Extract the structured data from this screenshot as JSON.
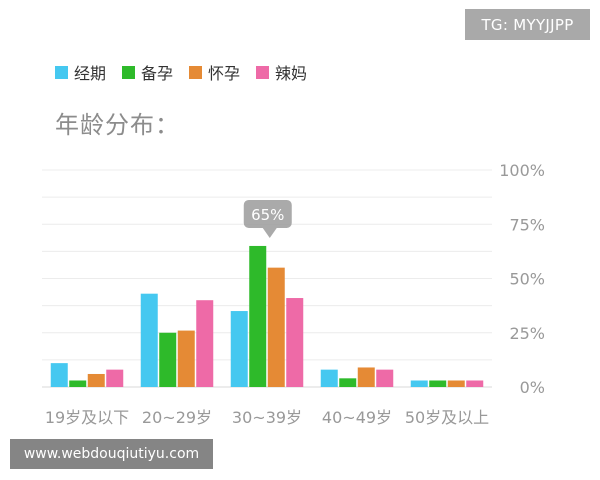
{
  "badge": {
    "text": "TG: MYYJJPP"
  },
  "watermark": {
    "text": "www.webdouqiutiyu.com"
  },
  "colors": {
    "jingqi": "#45c8f0",
    "beiyun": "#2eba2a",
    "huaiyun": "#e58a35",
    "lama": "#ee6aa7",
    "grid": "#ececec",
    "axis_text": "#999999",
    "tooltip_bg": "#9b9b9b"
  },
  "chart_data": {
    "type": "bar",
    "title": "年龄分布：",
    "categories": [
      "19岁及以下",
      "20~29岁",
      "30~39岁",
      "40~49岁",
      "50岁及以上"
    ],
    "series": [
      {
        "name": "经期",
        "color": "#45c8f0",
        "values": [
          11,
          43,
          35,
          8,
          3
        ]
      },
      {
        "name": "备孕",
        "color": "#2eba2a",
        "values": [
          3,
          25,
          65,
          4,
          3
        ]
      },
      {
        "name": "怀孕",
        "color": "#e58a35",
        "values": [
          6,
          26,
          55,
          9,
          3
        ]
      },
      {
        "name": "辣妈",
        "color": "#ee6aa7",
        "values": [
          8,
          40,
          41,
          8,
          3
        ]
      }
    ],
    "y_ticks": [
      "0%",
      "25%",
      "50%",
      "75%",
      "100%"
    ],
    "ylim": [
      0,
      100
    ],
    "grid": true,
    "legend_position": "top-left",
    "tooltip": {
      "text": "65%",
      "series_index": 1,
      "category_index": 2
    }
  }
}
